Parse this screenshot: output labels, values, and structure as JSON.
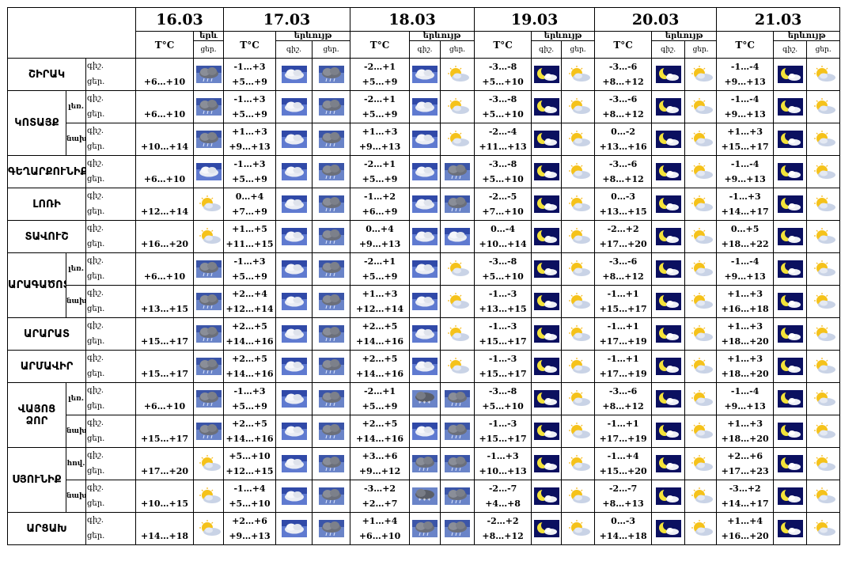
{
  "header": {
    "dates": [
      "16.03",
      "17.03",
      "18.03",
      "19.03",
      "20.03",
      "21.03"
    ],
    "temp_label": "T°C",
    "phen_label": "երևույթ",
    "phen_short": "երև",
    "night_label": "գիշ.",
    "day_label": "ցեր."
  },
  "row_label": {
    "night": "գիշ.",
    "day": "ցեր."
  },
  "regions": [
    {
      "name": "ՇԻՐԱԿ",
      "rows": [
        {
          "sub": "",
          "d16": {
            "t": "+6…+10",
            "i": "cloud-rain"
          },
          "days": [
            {
              "n": "-1…+3",
              "d": "+5…+9",
              "in": "cloud-light",
              "id": "cloud-rain"
            },
            {
              "n": "-2…+1",
              "d": "+5…+9",
              "in": "cloud-light",
              "id": "sun-cloud"
            },
            {
              "n": "-3…-8",
              "d": "+5…+10",
              "in": "moon-cloud",
              "id": "sun-cloud"
            },
            {
              "n": "-3…-6",
              "d": "+8…+12",
              "in": "moon-cloud",
              "id": "sun-cloud"
            },
            {
              "n": "-1…-4",
              "d": "+9…+13",
              "in": "moon-cloud",
              "id": "sun-cloud"
            }
          ]
        }
      ]
    },
    {
      "name": "ԿՈՏԱՅՔ",
      "rows": [
        {
          "sub": "լեռ.",
          "d16": {
            "t": "+6…+10",
            "i": "cloud-rain"
          },
          "days": [
            {
              "n": "-1…+3",
              "d": "+5…+9",
              "in": "cloud-light",
              "id": "cloud-rain"
            },
            {
              "n": "-2…+1",
              "d": "+5…+9",
              "in": "cloud-light",
              "id": "sun-cloud"
            },
            {
              "n": "-3…-8",
              "d": "+5…+10",
              "in": "moon-cloud",
              "id": "sun-cloud"
            },
            {
              "n": "-3…-6",
              "d": "+8…+12",
              "in": "moon-cloud",
              "id": "sun-cloud"
            },
            {
              "n": "-1…-4",
              "d": "+9…+13",
              "in": "moon-cloud",
              "id": "sun-cloud"
            }
          ]
        },
        {
          "sub": "նախ.",
          "d16": {
            "t": "+10…+14",
            "i": "cloud-rain"
          },
          "days": [
            {
              "n": "+1…+3",
              "d": "+9…+13",
              "in": "cloud-light",
              "id": "cloud-rain"
            },
            {
              "n": "+1…+3",
              "d": "+9…+13",
              "in": "cloud-light",
              "id": "sun-cloud"
            },
            {
              "n": "-2…-4",
              "d": "+11…+13",
              "in": "moon-cloud",
              "id": "sun-cloud"
            },
            {
              "n": "0…-2",
              "d": "+13…+16",
              "in": "moon-cloud",
              "id": "sun-cloud"
            },
            {
              "n": "+1…+3",
              "d": "+15…+17",
              "in": "moon-cloud",
              "id": "sun-cloud"
            }
          ]
        }
      ]
    },
    {
      "name": "ԳԵՂԱՐՔՈՒՆԻՔ",
      "rows": [
        {
          "sub": "",
          "d16": {
            "t": "+6…+10",
            "i": "cloud-light"
          },
          "days": [
            {
              "n": "-1…+3",
              "d": "+5…+9",
              "in": "cloud-light",
              "id": "cloud-rain"
            },
            {
              "n": "-2…+1",
              "d": "+5…+9",
              "in": "cloud-light",
              "id": "cloud-rain"
            },
            {
              "n": "-3…-8",
              "d": "+5…+10",
              "in": "moon-cloud",
              "id": "sun-cloud"
            },
            {
              "n": "-3…-6",
              "d": "+8…+12",
              "in": "moon-cloud",
              "id": "sun-cloud"
            },
            {
              "n": "-1…-4",
              "d": "+9…+13",
              "in": "moon-cloud",
              "id": "sun-cloud"
            }
          ]
        }
      ]
    },
    {
      "name": "ԼՈՌԻ",
      "rows": [
        {
          "sub": "",
          "d16": {
            "t": "+12…+14",
            "i": "sun-cloud"
          },
          "days": [
            {
              "n": "0…+4",
              "d": "+7…+9",
              "in": "cloud-light",
              "id": "cloud-rain"
            },
            {
              "n": "-1…+2",
              "d": "+6…+9",
              "in": "cloud-light",
              "id": "cloud-rain"
            },
            {
              "n": "-2…-5",
              "d": "+7…+10",
              "in": "moon-cloud",
              "id": "sun-cloud"
            },
            {
              "n": "0…-3",
              "d": "+13…+15",
              "in": "moon-cloud",
              "id": "sun-cloud"
            },
            {
              "n": "-1…+3",
              "d": "+14…+17",
              "in": "moon-cloud",
              "id": "sun-cloud"
            }
          ]
        }
      ]
    },
    {
      "name": "ՏԱՎՈՒՇ",
      "rows": [
        {
          "sub": "",
          "d16": {
            "t": "+16…+20",
            "i": "sun-cloud"
          },
          "days": [
            {
              "n": "+1…+5",
              "d": "+11…+15",
              "in": "cloud-light",
              "id": "cloud-rain"
            },
            {
              "n": "0…+4",
              "d": "+9…+13",
              "in": "cloud-light",
              "id": "cloud-light"
            },
            {
              "n": "0…-4",
              "d": "+10…+14",
              "in": "moon-cloud",
              "id": "sun-cloud"
            },
            {
              "n": "-2…+2",
              "d": "+17…+20",
              "in": "moon-cloud",
              "id": "sun-cloud"
            },
            {
              "n": "0…+5",
              "d": "+18…+22",
              "in": "moon-cloud",
              "id": "sun-cloud"
            }
          ]
        }
      ]
    },
    {
      "name": "ԱՐԱԳԱԾՈՏՆ",
      "rows": [
        {
          "sub": "լեռ.",
          "d16": {
            "t": "+6…+10",
            "i": "cloud-rain"
          },
          "days": [
            {
              "n": "-1…+3",
              "d": "+5…+9",
              "in": "cloud-light",
              "id": "cloud-rain"
            },
            {
              "n": "-2…+1",
              "d": "+5…+9",
              "in": "cloud-light",
              "id": "sun-cloud"
            },
            {
              "n": "-3…-8",
              "d": "+5…+10",
              "in": "moon-cloud",
              "id": "sun-cloud"
            },
            {
              "n": "-3…-6",
              "d": "+8…+12",
              "in": "moon-cloud",
              "id": "sun-cloud"
            },
            {
              "n": "-1…-4",
              "d": "+9…+13",
              "in": "moon-cloud",
              "id": "sun-cloud"
            }
          ]
        },
        {
          "sub": "նախ.",
          "d16": {
            "t": "+13…+15",
            "i": "cloud-rain"
          },
          "days": [
            {
              "n": "+2…+4",
              "d": "+12…+14",
              "in": "cloud-light",
              "id": "cloud-rain"
            },
            {
              "n": "+1…+3",
              "d": "+12…+14",
              "in": "cloud-light",
              "id": "sun-cloud"
            },
            {
              "n": "-1…-3",
              "d": "+13…+15",
              "in": "moon-cloud",
              "id": "sun-cloud"
            },
            {
              "n": "-1…+1",
              "d": "+15…+17",
              "in": "moon-cloud",
              "id": "sun-cloud"
            },
            {
              "n": "+1…+3",
              "d": "+16…+18",
              "in": "moon-cloud",
              "id": "sun-cloud"
            }
          ]
        }
      ]
    },
    {
      "name": "ԱՐԱՐԱՏ",
      "rows": [
        {
          "sub": "",
          "d16": {
            "t": "+15…+17",
            "i": "cloud-rain"
          },
          "days": [
            {
              "n": "+2…+5",
              "d": "+14…+16",
              "in": "cloud-light",
              "id": "cloud-rain"
            },
            {
              "n": "+2…+5",
              "d": "+14…+16",
              "in": "cloud-light",
              "id": "sun-cloud"
            },
            {
              "n": "-1…-3",
              "d": "+15…+17",
              "in": "moon-cloud",
              "id": "sun-cloud"
            },
            {
              "n": "-1…+1",
              "d": "+17…+19",
              "in": "moon-cloud",
              "id": "sun-cloud"
            },
            {
              "n": "+1…+3",
              "d": "+18…+20",
              "in": "moon-cloud",
              "id": "sun-cloud"
            }
          ]
        }
      ]
    },
    {
      "name": "ԱՐՄԱՎԻՐ",
      "rows": [
        {
          "sub": "",
          "d16": {
            "t": "+15…+17",
            "i": "cloud-rain"
          },
          "days": [
            {
              "n": "+2…+5",
              "d": "+14…+16",
              "in": "cloud-light",
              "id": "cloud-rain"
            },
            {
              "n": "+2…+5",
              "d": "+14…+16",
              "in": "cloud-light",
              "id": "sun-cloud"
            },
            {
              "n": "-1…-3",
              "d": "+15…+17",
              "in": "moon-cloud",
              "id": "sun-cloud"
            },
            {
              "n": "-1…+1",
              "d": "+17…+19",
              "in": "moon-cloud",
              "id": "sun-cloud"
            },
            {
              "n": "+1…+3",
              "d": "+18…+20",
              "in": "moon-cloud",
              "id": "sun-cloud"
            }
          ]
        }
      ]
    },
    {
      "name": "ՎԱՅՈՑ ՁՈՐ",
      "rows": [
        {
          "sub": "լեռ.",
          "d16": {
            "t": "+6…+10",
            "i": "cloud-rain"
          },
          "days": [
            {
              "n": "-1…+3",
              "d": "+5…+9",
              "in": "cloud-light",
              "id": "cloud-rain"
            },
            {
              "n": "-2…+1",
              "d": "+5…+9",
              "in": "cloud-snow",
              "id": "cloud-rain"
            },
            {
              "n": "-3…-8",
              "d": "+5…+10",
              "in": "moon-cloud",
              "id": "sun-cloud"
            },
            {
              "n": "-3…-6",
              "d": "+8…+12",
              "in": "moon-cloud",
              "id": "sun-cloud"
            },
            {
              "n": "-1…-4",
              "d": "+9…+13",
              "in": "moon-cloud",
              "id": "sun-cloud"
            }
          ]
        },
        {
          "sub": "նախ.",
          "d16": {
            "t": "+15…+17",
            "i": "cloud-rain"
          },
          "days": [
            {
              "n": "+2…+5",
              "d": "+14…+16",
              "in": "cloud-light",
              "id": "cloud-rain"
            },
            {
              "n": "+2…+5",
              "d": "+14…+16",
              "in": "cloud-light",
              "id": "cloud-rain"
            },
            {
              "n": "-1…-3",
              "d": "+15…+17",
              "in": "moon-cloud",
              "id": "sun-cloud"
            },
            {
              "n": "-1…+1",
              "d": "+17…+19",
              "in": "moon-cloud",
              "id": "sun-cloud"
            },
            {
              "n": "+1…+3",
              "d": "+18…+20",
              "in": "moon-cloud",
              "id": "sun-cloud"
            }
          ]
        }
      ]
    },
    {
      "name": "ՍՅՈՒՆԻՔ",
      "rows": [
        {
          "sub": "հով.",
          "d16": {
            "t": "+17…+20",
            "i": "sun-cloud"
          },
          "days": [
            {
              "n": "+5…+10",
              "d": "+12…+15",
              "in": "cloud-light",
              "id": "cloud-rain"
            },
            {
              "n": "+3…+6",
              "d": "+9…+12",
              "in": "cloud-rain",
              "id": "cloud-rain"
            },
            {
              "n": "-1…+3",
              "d": "+10…+13",
              "in": "moon-cloud",
              "id": "sun-cloud"
            },
            {
              "n": "-1…+4",
              "d": "+15…+20",
              "in": "moon-cloud",
              "id": "sun-cloud"
            },
            {
              "n": "+2…+6",
              "d": "+17…+23",
              "in": "moon-cloud",
              "id": "sun-cloud"
            }
          ]
        },
        {
          "sub": "նախ.",
          "d16": {
            "t": "+10…+15",
            "i": "sun-cloud"
          },
          "days": [
            {
              "n": "-1…+4",
              "d": "+5…+10",
              "in": "cloud-light",
              "id": "cloud-rain"
            },
            {
              "n": "-3…+2",
              "d": "+2…+7",
              "in": "cloud-snow",
              "id": "cloud-rain"
            },
            {
              "n": "-2…-7",
              "d": "+4…+8",
              "in": "moon-cloud",
              "id": "sun-cloud"
            },
            {
              "n": "-2…-7",
              "d": "+8…+13",
              "in": "moon-cloud",
              "id": "sun-cloud"
            },
            {
              "n": "-3…+2",
              "d": "+14…+17",
              "in": "moon-cloud",
              "id": "sun-cloud"
            }
          ]
        }
      ]
    },
    {
      "name": "ԱՐՑԱԽ",
      "rows": [
        {
          "sub": "",
          "d16": {
            "t": "+14…+18",
            "i": "sun-cloud"
          },
          "days": [
            {
              "n": "+2…+6",
              "d": "+9…+13",
              "in": "cloud-light",
              "id": "cloud-rain"
            },
            {
              "n": "+1…+4",
              "d": "+6…+10",
              "in": "cloud-rain",
              "id": "cloud-rain"
            },
            {
              "n": "-2…+2",
              "d": "+8…+12",
              "in": "moon-cloud",
              "id": "sun-cloud"
            },
            {
              "n": "0…-3",
              "d": "+14…+18",
              "in": "moon-cloud",
              "id": "sun-cloud"
            },
            {
              "n": "+1…+4",
              "d": "+16…+20",
              "in": "moon-cloud",
              "id": "sun-cloud"
            }
          ]
        }
      ]
    }
  ]
}
